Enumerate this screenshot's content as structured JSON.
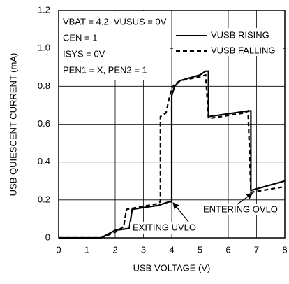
{
  "chart_data": {
    "type": "line",
    "xlabel": "USB VOLTAGE (V)",
    "ylabel": "USB QUIESCENT CURRENT (mA)",
    "xlim": [
      0,
      8
    ],
    "xticks": [
      0,
      1,
      2,
      3,
      4,
      5,
      6,
      7,
      8
    ],
    "ylim": [
      0,
      1.2
    ],
    "yticks": [
      0,
      0.2,
      0.4,
      0.6,
      0.8,
      {
        "value": 1,
        "label": "1.0"
      },
      1.2
    ],
    "grid": true,
    "legend": "upper right",
    "conditions": [
      "VBAT = 4.2, VUSUS = 0V",
      "CEN = 1",
      "ISYS = 0V",
      "PEN1 = X, PEN2 = 1"
    ],
    "annotations": [
      "EXITING UVLO",
      "ENTERING OVLO"
    ],
    "series": [
      {
        "name": "VUSB RISING",
        "color": "#000000",
        "dash": "solid",
        "x": [
          0,
          1.5,
          2.0,
          2.5,
          2.6,
          3.0,
          3.5,
          3.9,
          4.0,
          4.0,
          4.1,
          4.3,
          5.0,
          5.2,
          5.3,
          5.3,
          6.7,
          6.8,
          6.8,
          8.0
        ],
        "values": [
          0,
          0,
          0.04,
          0.05,
          0.15,
          0.16,
          0.17,
          0.19,
          0.19,
          0.75,
          0.8,
          0.83,
          0.86,
          0.88,
          0.88,
          0.64,
          0.67,
          0.67,
          0.25,
          0.3
        ]
      },
      {
        "name": "VUSB FALLING",
        "color": "#000000",
        "dash": "dashed",
        "x": [
          0,
          1.5,
          2.0,
          2.3,
          2.4,
          3.5,
          3.6,
          3.6,
          3.8,
          3.9,
          4.0,
          4.1,
          4.3,
          5.0,
          5.2,
          5.3,
          6.6,
          6.7,
          6.8,
          8.0
        ],
        "values": [
          0,
          0,
          0.03,
          0.06,
          0.15,
          0.18,
          0.19,
          0.64,
          0.66,
          0.73,
          0.79,
          0.81,
          0.83,
          0.85,
          0.86,
          0.63,
          0.66,
          0.67,
          0.24,
          0.27
        ]
      }
    ]
  }
}
